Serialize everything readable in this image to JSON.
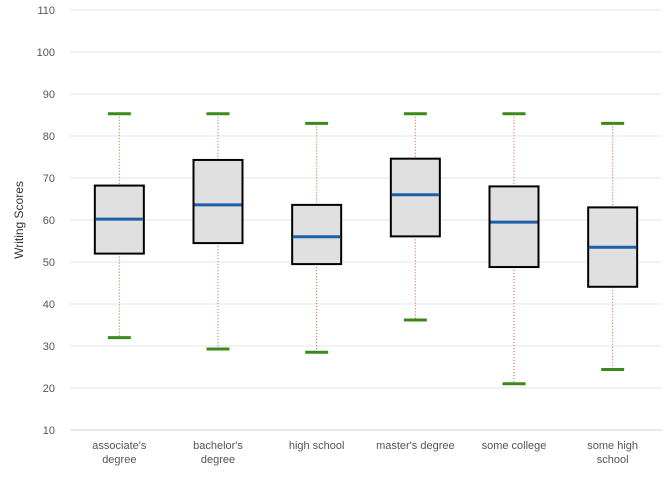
{
  "chart_data": {
    "type": "box",
    "title": "",
    "xlabel": "",
    "ylabel": "Writing Scores",
    "ylim": [
      10,
      110
    ],
    "yticks": [
      10,
      20,
      30,
      40,
      50,
      60,
      70,
      80,
      90,
      100,
      110
    ],
    "grid": true,
    "legend": "none",
    "categories": [
      [
        "associate's",
        "degree"
      ],
      [
        "bachelor's",
        "degree"
      ],
      [
        "high school"
      ],
      [
        "master's degree"
      ],
      [
        "some college"
      ],
      [
        "some high",
        "school"
      ]
    ],
    "boxes": [
      {
        "category": "associate's degree",
        "min": 32,
        "q1": 52,
        "median": 60.2,
        "q3": 68.2,
        "max": 85.3
      },
      {
        "category": "bachelor's degree",
        "min": 29.3,
        "q1": 54.5,
        "median": 63.6,
        "q3": 74.3,
        "max": 85.3
      },
      {
        "category": "high school",
        "min": 28.5,
        "q1": 49.5,
        "median": 56,
        "q3": 63.6,
        "max": 83
      },
      {
        "category": "master's degree",
        "min": 36.2,
        "q1": 56.1,
        "median": 66,
        "q3": 74.6,
        "max": 85.3
      },
      {
        "category": "some college",
        "min": 21,
        "q1": 48.8,
        "median": 59.5,
        "q3": 68,
        "max": 85.3
      },
      {
        "category": "some high school",
        "min": 24.4,
        "q1": 44.1,
        "median": 53.5,
        "q3": 63,
        "max": 83
      }
    ],
    "colors": {
      "box_fill": "#e0e0e0",
      "box_stroke": "#000000",
      "median": "#1f5fa8",
      "whisker": "#d05a3a",
      "cap": "#3a8a1a",
      "grid": "#e6e6e6",
      "axis": "#ccd6eb",
      "tick_text": "#555555"
    }
  }
}
